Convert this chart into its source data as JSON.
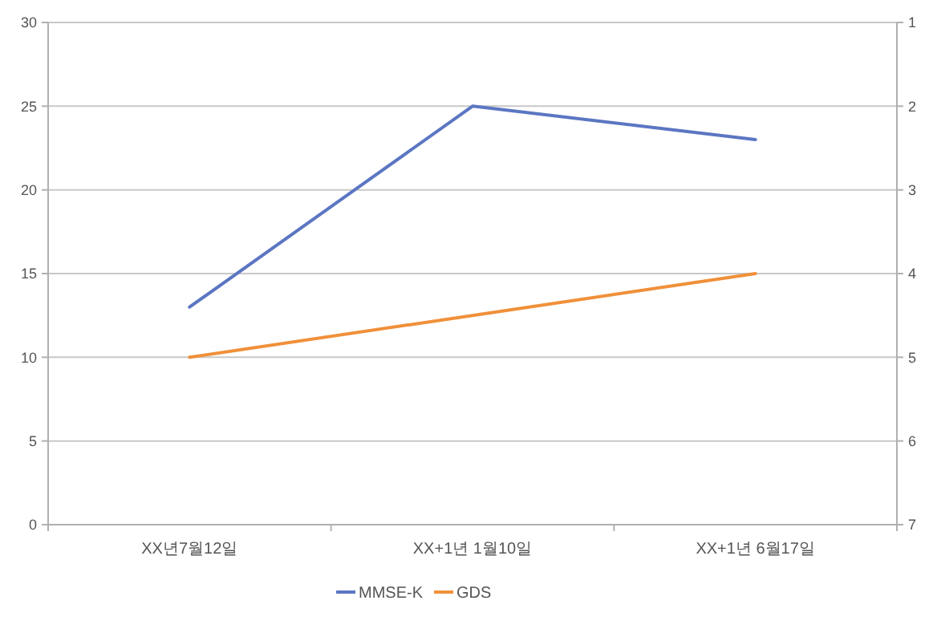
{
  "chart_data": {
    "type": "line",
    "categories": [
      "XX년7월12일",
      "XX+1년 1월10일",
      "XX+1년 6월17일"
    ],
    "series": [
      {
        "name": "MMSE-K",
        "color": "#5b76c2",
        "values": [
          13,
          25,
          23
        ]
      },
      {
        "name": "GDS",
        "color": "#f0903a",
        "values": [
          5,
          4.5,
          4
        ],
        "axis": "y2"
      }
    ],
    "ylim": [
      0,
      30
    ],
    "yticks": [
      0,
      5,
      10,
      15,
      20,
      25,
      30
    ],
    "y2lim": [
      7,
      1
    ],
    "y2ticks": [
      1,
      2,
      3,
      4,
      5,
      6,
      7
    ],
    "grid": "y",
    "legend": "bottom",
    "marker": "none",
    "line_style": "solid"
  }
}
